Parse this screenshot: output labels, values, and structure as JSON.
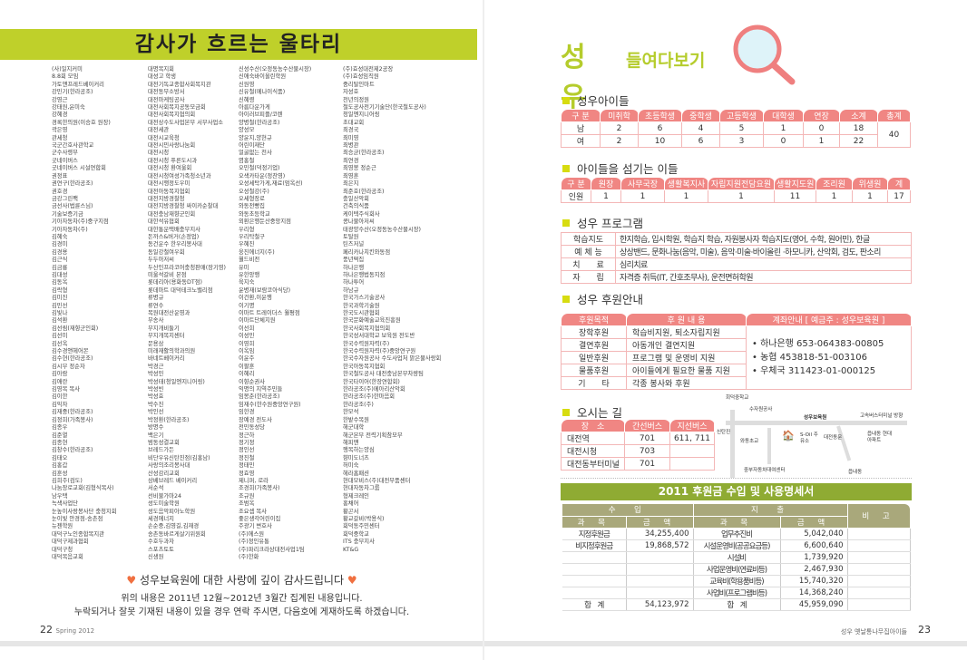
{
  "left_page": {
    "title": "감사가 흐르는 울타리",
    "name_columns": [
      [
        "(사)일지커미",
        "8.8회 모임",
        "가토앤프레드베이커리",
        "강민기(한라공조)",
        "강영근",
        "강태원,윤미숙",
        "강혜경",
        "경록한의원(이승호 원장)",
        "곽은영",
        "관세청",
        "국군간호사관학교",
        "군수사령부",
        "굿네이버스",
        "굿네이버스 시설연합회",
        "권정표",
        "권연구(한라공조)",
        "권호경",
        "금강그린팩",
        "금선사(법륜스님)",
        "기술보증기금",
        "기아자동차(주)중구지점",
        "기아자동차(주)",
        "김혜숙",
        "김경미",
        "김경용",
        "김근식",
        "김금룡",
        "김대성",
        "김동옥",
        "김락형",
        "김미진",
        "김민선",
        "김빛나",
        "김석환",
        "김선림(재향군인회)",
        "김선미",
        "김선옥",
        "김수경앤헤어몬",
        "김수현(한라공조)",
        "김시무 정순자",
        "김아람",
        "김애란",
        "김영목 목사",
        "김이한",
        "김익자",
        "김재중(한라공조)",
        "김정희(가족봉사)",
        "김종우",
        "김준열",
        "김종현",
        "김창수(한라공조)",
        "김태오",
        "김홍갑",
        "김훈성",
        "김희주(검도)",
        "나눔장로교회(김형식목사)",
        "남우택",
        "녹색사업단",
        "눈높이사랑봉사단 충청지회",
        "눈이빛 안경점-송촌점",
        "뉴젠학원",
        "대덕구노인종합복지관",
        "대덕구제과협회",
        "대덕구청",
        "대덕복음교회"
      ],
      [
        "대명복지회",
        "대성고 학생",
        "대전기독교종합사회복지관",
        "대전동부소방서",
        "대전마케팅공사",
        "대전사회복지공동모금회",
        "대전사회복지협의회",
        "대전상수도사업본부 서부사업소",
        "대전세관",
        "대전시교육청",
        "대전시민사랑나눔회",
        "대전시청",
        "대전시청 푸른도시과",
        "대전시청 환여울회",
        "대전시청여성가족청소년과",
        "대전시행정도우미",
        "대전아동복지협회",
        "대전지방경찰청",
        "대전지방경찰청 싸이카순찰대",
        "대전충남재향군인회",
        "대한석유협회",
        "대한통운택배충무지사",
        "돈까스&버거(손정업)",
        "동건운수 한우리봉사대",
        "동일강철여우회",
        "두두아저씨",
        "두산인프라코어충청판매(장기영)",
        "미울석갈비 본점",
        "롯데리아(용화동DT점)",
        "롯데마트 대덕테크노밸리점",
        "류병규",
        "류연수",
        "목원대전산운영과",
        "무송사",
        "무지개비둘기",
        "무지개복지센터",
        "문용삼",
        "미래재활의학과의원",
        "바네트베이커리",
        "박경근",
        "박성민",
        "박성태(청일엔지니어링)",
        "박성빈",
        "박성효",
        "박수진",
        "박인선",
        "박정환(한라공조)",
        "방명수",
        "백은기",
        "범동성결교회",
        "브레드가든",
        "비단우유신탄진점(김홍남)",
        "사랑의조리봉사대",
        "산성감리교회",
        "상베브레드 베이커리",
        "서순석",
        "선비불가마24",
        "성도미술학원",
        "성도음악피아노학원",
        "세경에너지",
        "손순중,김영길,김재경",
        "송촌동바르게살기위원회",
        "수호두과자",
        "스포츠토토",
        "신생원"
      ],
      [
        "신성수산(오정동농수산물시장)",
        "신애숙바이올린학원",
        "신원영",
        "신유철(메나이식품)",
        "신혜령",
        "아름다운가게",
        "아이러브피플/코렌",
        "양병철(한라공조)",
        "양성모",
        "양윤지,양현규",
        "어린이재단",
        "얼굴없는 천사",
        "염홍철",
        "오민철(덕정기업)",
        "오색카타운(정찬영)",
        "오성세탁가게,재료(엄옥선)",
        "오성철강(주)",
        "오세형장로",
        "와동전빵집",
        "와동초등학교",
        "외환은행둔산중앙지점",
        "우리형",
        "우리탁철구",
        "우혜진",
        "웅진에너지(주)",
        "월드비전",
        "유미",
        "유한앙행",
        "육지숙",
        "윤병재(보람코아식당)",
        "이건환,이윤행",
        "이기명",
        "이마트 트레이더스 월평점",
        "이마트단체지원",
        "이선희",
        "이성민",
        "이영희",
        "이옥임",
        "이윤주",
        "이팔훈",
        "이혜리",
        "이향순권사",
        "익명의 지역주민들",
        "임봉춘(한라공조)",
        "임재수(한수원중앙연구원)",
        "임한경",
        "장예경 전도사",
        "전민동성당",
        "정근하",
        "정기정",
        "정인선",
        "정진철",
        "정태민",
        "정효영",
        "제니퍼, 로라",
        "조경희(가족봉사)",
        "조규원",
        "조범옥",
        "조요셉 목사",
        "좋은생각어린이집",
        "주광기 변호사",
        "(주)에스원",
        "(주)정인유통",
        "(주)파리크라상대전사업1팀",
        "(주)한화"
      ],
      [
        "(주)효성대전제2공장",
        "(주)효성임직원",
        "중리탈인마트",
        "자성호",
        "천년의정원",
        "철도공사전기기술단(한국철도공사)",
        "청일엔지니어링",
        "초대교회",
        "최경국",
        "최미영",
        "최병관",
        "최승균(한라공조)",
        "최연경",
        "최영봉 정순근",
        "최영훈",
        "최은지",
        "최준호(한라공조)",
        "충일산악회",
        "건축의식품",
        "케이텍주식회사",
        "콩나물아저씨",
        "태광양수산(오정동농수산물시장)",
        "토탈원",
        "틴즈저널",
        "페리카나치킨와동점",
        "풍년떡집",
        "하나은행",
        "하나은행법동지점",
        "하나투어",
        "하남규",
        "한국가스기술공사",
        "한국과학기술원",
        "한국도시관협회",
        "한국문화예술교육진흥원",
        "한국사회복지협의회",
        "한국성서대학교 보육원 전도반",
        "한국수력원자력(주)",
        "한국수력원자력(주)중앙연구원",
        "한국수자원공사 수도사업처 맑은물사랑회",
        "한국아동복지협회",
        "한국철도공사 대전충남본부차량팀",
        "한국타이어(한장연합회)",
        "한라공조(주)메아리산악회",
        "한라공조(주)한마음회",
        "한라공조(주)",
        "한모석",
        "한밭수목원",
        "해군대학",
        "해군본부 전력기획참모부",
        "해피맨",
        "행복하는양심",
        "향미도너츠",
        "허미숙",
        "헤라홈패션",
        "현대모비스(주)대전부품센터",
        "현대자동차그룹",
        "형제크레인",
        "홍채어",
        "황곤서",
        "황교갈비(박용식)",
        "회덕동주민센터",
        "회덕중학교",
        "ITS 충부지사",
        "KT&G"
      ]
    ],
    "thanks_line": "성우보육원에 대한 사랑에 깊이 감사드립니다",
    "note_1": "위의 내용은 2011년 12월~2012년 3월간 집계된 내용입니다.",
    "note_2": "누락되거나 잘못 기재된 내용이 있을 경우 연락 주시면, 다음호에 게재하도록 하겠습니다.",
    "page_number": "22",
    "issue": "Spring 2012"
  },
  "right_page": {
    "logo_big": "성우",
    "logo_small": "들여다보기",
    "children": {
      "heading": "성우아이들",
      "headers": [
        "구 분",
        "미취학",
        "초등학생",
        "중학생",
        "고등학생",
        "대학생",
        "연장",
        "소계",
        "총계"
      ],
      "rows": [
        [
          "남",
          "2",
          "6",
          "4",
          "5",
          "1",
          "0",
          "18"
        ],
        [
          "여",
          "2",
          "10",
          "6",
          "3",
          "0",
          "1",
          "22"
        ]
      ],
      "total": "40"
    },
    "staff": {
      "heading": "아이들을 섬기는 이들",
      "headers": [
        "구 분",
        "원장",
        "사무국장",
        "생활복지사",
        "자립지원전담요원",
        "생활지도원",
        "조리원",
        "위생원",
        "계"
      ],
      "rows": [
        [
          "인원",
          "1",
          "1",
          "1",
          "1",
          "11",
          "1",
          "1",
          "17"
        ]
      ]
    },
    "programs": {
      "heading": "성우 프로그램",
      "rows": [
        [
          "학습지도",
          "한지학습, 입시학원, 학습지 학습, 자원봉사자 학습지도(영어, 수학, 원어민), 한글"
        ],
        [
          "예 체 능",
          "상상밴드, 문화나눔(음악, 미술), 음악·미술·바이올린 ·하모니카, 산악회, 검도, 판소리"
        ],
        [
          "치　　료",
          "심리치료"
        ],
        [
          "자　　립",
          "자격증 취득(IT, 간호조무사), 운전면허학원"
        ]
      ]
    },
    "support": {
      "heading": "성우 후원안내",
      "headers": [
        "후원목적",
        "후 원 내 용",
        "계좌안내 [ 예금주 : 성우보육원 ]"
      ],
      "rows": [
        [
          "장학후원",
          "학습비지원, 퇴소자립지원"
        ],
        [
          "결연후원",
          "아동개인 결연지원"
        ],
        [
          "일반후원",
          "프로그램 및 운영비 지원"
        ],
        [
          "물품후원",
          "아이들에게 필요한 물품 지원"
        ],
        [
          "기　　타",
          "각종 봉사와 후원"
        ]
      ],
      "accounts": [
        "하나은행 653-064383-00805",
        "농협 453818-51-003106",
        "우체국 311423-01-000125"
      ]
    },
    "directions": {
      "heading": "오시는 길",
      "headers": [
        "장　소",
        "간선버스",
        "지선버스"
      ],
      "rows": [
        [
          "대전역",
          "701",
          "611, 711"
        ],
        [
          "대전시청",
          "703",
          ""
        ],
        [
          "대전동부터미널",
          "701",
          ""
        ]
      ],
      "map_labels": {
        "school": "회덕중학교",
        "water": "수자원공사",
        "orphanage": "성우보육원",
        "bus_terminal": "고속버스터미널 방향",
        "sintanjin": "신탄진",
        "elementary": "와동초교",
        "gas": "S-Oil 주유소",
        "church": "대전동문",
        "apartment": "읍내동 현대아파트",
        "center": "중부자동차대여센터",
        "eupnae": "읍내동"
      }
    },
    "finance": {
      "title": "2011 후원금 수입 및 사용명세서",
      "income_label": "수　입",
      "expense_label": "지　출",
      "note_label": "비 고",
      "sub_headers": [
        "과 목",
        "금 액",
        "과 목",
        "금 액"
      ],
      "rows": [
        [
          "지정후원금",
          "34,255,400",
          "업무추진비",
          "5,042,040"
        ],
        [
          "비지정후원금",
          "19,868,572",
          "시설운영비(공공요금등)",
          "6,600,640"
        ],
        [
          "",
          "",
          "시설비",
          "1,739,920"
        ],
        [
          "",
          "",
          "사업운영비(연료비등)",
          "2,467,930"
        ],
        [
          "",
          "",
          "교육비(학용품비등)",
          "15,740,320"
        ],
        [
          "",
          "",
          "사업비(프로그램비등)",
          "14,368,240"
        ],
        [
          "합　계",
          "54,123,972",
          "합　계",
          "45,959,090"
        ]
      ]
    },
    "footer_label": "성우 옛날통나무집아이들",
    "page_number": "23"
  },
  "colors": {
    "title_green": "#bfd02a",
    "pink_header": "#f08683",
    "olive_header": "#a9a87b",
    "band_green": "#8fab33",
    "bullet": "#d7dc10"
  }
}
